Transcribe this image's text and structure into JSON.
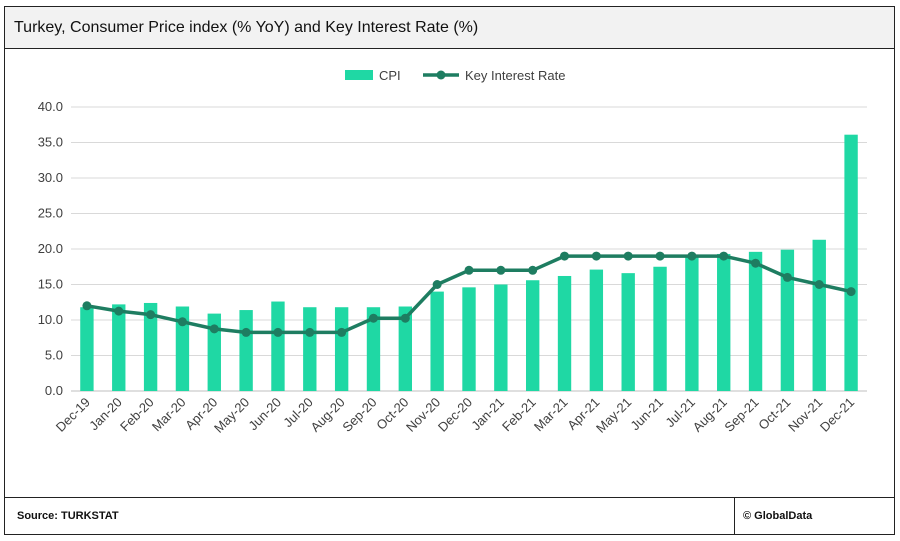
{
  "title": "Turkey, Consumer Price index (% YoY) and Key Interest Rate (%)",
  "footer": {
    "source": "Source: TURKSTAT",
    "credit": "© GlobalData"
  },
  "colors": {
    "cpi": "#1fd8a4",
    "rate": "#1e7d61",
    "grid": "#d9d9d9"
  },
  "chart_data": {
    "type": "bar",
    "title": "",
    "xlabel": "",
    "ylabel": "",
    "ylim": [
      0,
      40
    ],
    "yticks": [
      "0.0",
      "5.0",
      "10.0",
      "15.0",
      "20.0",
      "25.0",
      "30.0",
      "35.0",
      "40.0"
    ],
    "grid": true,
    "legend_position": "top-center",
    "categories": [
      "Dec-19",
      "Jan-20",
      "Feb-20",
      "Mar-20",
      "Apr-20",
      "May-20",
      "Jun-20",
      "Jul-20",
      "Aug-20",
      "Sep-20",
      "Oct-20",
      "Nov-20",
      "Dec-20",
      "Jan-21",
      "Feb-21",
      "Mar-21",
      "Apr-21",
      "May-21",
      "Jun-21",
      "Jul-21",
      "Aug-21",
      "Sep-21",
      "Oct-21",
      "Nov-21",
      "Dec-21"
    ],
    "series": [
      {
        "name": "CPI",
        "type": "bar",
        "values": [
          11.8,
          12.2,
          12.4,
          11.9,
          10.9,
          11.4,
          12.6,
          11.8,
          11.8,
          11.8,
          11.9,
          14.0,
          14.6,
          15.0,
          15.6,
          16.2,
          17.1,
          16.6,
          17.5,
          19.0,
          19.3,
          19.6,
          19.9,
          21.3,
          36.1
        ]
      },
      {
        "name": "Key Interest Rate",
        "type": "line",
        "values": [
          12.0,
          11.25,
          10.75,
          9.75,
          8.75,
          8.25,
          8.25,
          8.25,
          8.25,
          10.25,
          10.25,
          15.0,
          17.0,
          17.0,
          17.0,
          19.0,
          19.0,
          19.0,
          19.0,
          19.0,
          19.0,
          18.0,
          16.0,
          15.0,
          14.0
        ]
      }
    ]
  }
}
